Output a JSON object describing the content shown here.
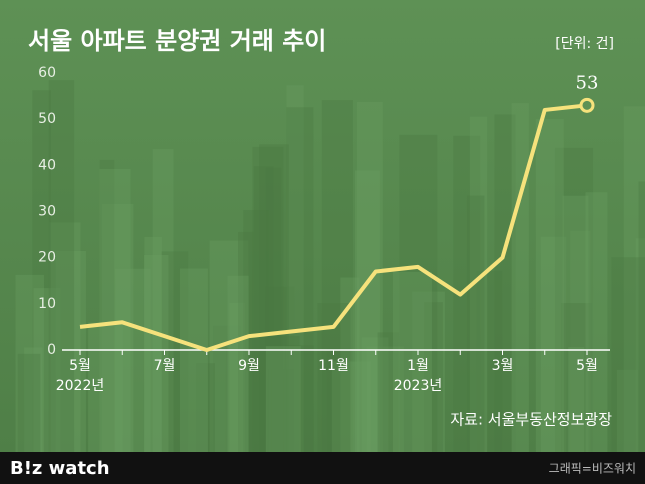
{
  "chart_data": {
    "type": "line",
    "title": "서울 아파트 분양권 거래 추이",
    "unit": "[단위: 건]",
    "source": "자료: 서울부동산정보광장",
    "brand": "B!z watch",
    "credit": "그래픽=비즈워치",
    "categories": [
      "5월",
      null,
      "7월",
      null,
      "9월",
      null,
      "11월",
      null,
      "1월",
      null,
      "3월",
      null,
      "5월"
    ],
    "category_years": [
      "2022년",
      null,
      null,
      null,
      null,
      null,
      null,
      null,
      "2023년",
      null,
      null,
      null,
      null
    ],
    "series": [
      {
        "name": "분양권 거래",
        "color": "#f6e27c",
        "values": [
          5,
          6,
          3,
          0,
          3,
          4,
          5,
          17,
          18,
          12,
          20,
          52,
          53
        ]
      }
    ],
    "ylim": [
      0,
      60
    ],
    "yticks": [
      0,
      10,
      20,
      30,
      40,
      50,
      60
    ],
    "grid": false
  }
}
